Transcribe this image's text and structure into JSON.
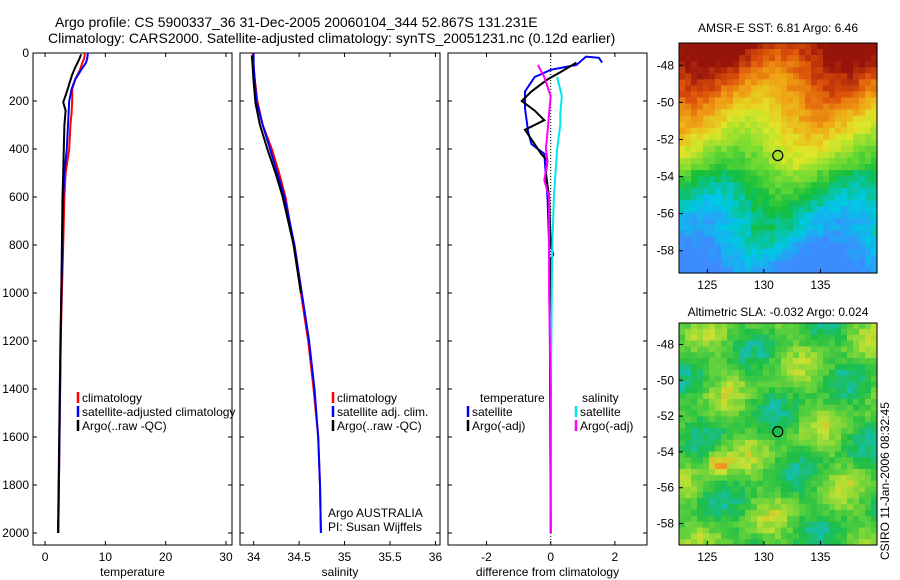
{
  "header": {
    "title_line1": "Argo profile: CS 5900337_36 31-Dec-2005 20060104_344 52.867S 131.231E",
    "title_line2": "Climatology: CARS2000. Satellite-adjusted climatology: synTS_20051231.nc (0.12d earlier)"
  },
  "stamp": "CSIRO 11-Jan-2006 08:32:45",
  "colors": {
    "climatology": "#ff0000",
    "satellite": "#0000ff",
    "argo": "#000000",
    "satellite_sal_diff": "#00e5ee",
    "argo_sal_diff": "#ff00ff"
  },
  "chart_data": [
    {
      "type": "line",
      "panel": "temperature",
      "xlabel": "temperature",
      "xlim": [
        -2,
        31
      ],
      "ylim": [
        2050,
        0
      ],
      "x_ticks": [
        0,
        10,
        20,
        30
      ],
      "y_ticks": [
        0,
        200,
        400,
        600,
        800,
        1000,
        1200,
        1400,
        1600,
        1800,
        2000
      ],
      "legend": [
        "climatology",
        "satellite-adjusted climatology",
        "Argo(..raw -QC)"
      ],
      "series": [
        {
          "name": "climatology",
          "color": "#ff0000",
          "points": [
            [
              6.6,
              0
            ],
            [
              6.5,
              20
            ],
            [
              6.2,
              40
            ],
            [
              5.8,
              70
            ],
            [
              5.0,
              110
            ],
            [
              4.5,
              150
            ],
            [
              4.5,
              200
            ],
            [
              4.4,
              250
            ],
            [
              4.2,
              300
            ],
            [
              4.0,
              400
            ],
            [
              3.4,
              500
            ],
            [
              3.2,
              600
            ],
            [
              3.0,
              800
            ],
            [
              2.8,
              1000
            ],
            [
              2.6,
              1200
            ],
            [
              2.5,
              1400
            ],
            [
              2.4,
              1600
            ],
            [
              2.3,
              1800
            ],
            [
              2.2,
              2000
            ]
          ]
        },
        {
          "name": "satellite-adjusted climatology",
          "color": "#0000ff",
          "points": [
            [
              7.1,
              0
            ],
            [
              7.0,
              20
            ],
            [
              6.8,
              40
            ],
            [
              6.0,
              70
            ],
            [
              5.0,
              110
            ],
            [
              4.4,
              150
            ],
            [
              4.0,
              200
            ],
            [
              3.8,
              300
            ],
            [
              3.6,
              400
            ],
            [
              3.2,
              500
            ],
            [
              3.0,
              600
            ],
            [
              2.9,
              800
            ],
            [
              2.7,
              1000
            ],
            [
              2.6,
              1200
            ],
            [
              2.5,
              1400
            ],
            [
              2.4,
              1600
            ],
            [
              2.3,
              1800
            ],
            [
              2.2,
              2000
            ]
          ]
        },
        {
          "name": "Argo(..raw -QC)",
          "color": "#000000",
          "points": [
            [
              6.0,
              5
            ],
            [
              5.6,
              30
            ],
            [
              5.0,
              60
            ],
            [
              4.5,
              90
            ],
            [
              4.0,
              130
            ],
            [
              3.5,
              170
            ],
            [
              3.0,
              205
            ],
            [
              3.4,
              240
            ],
            [
              3.2,
              300
            ],
            [
              3.1,
              400
            ],
            [
              3.0,
              500
            ],
            [
              2.9,
              600
            ],
            [
              2.8,
              800
            ],
            [
              2.7,
              1000
            ],
            [
              2.55,
              1200
            ],
            [
              2.45,
              1400
            ],
            [
              2.35,
              1600
            ],
            [
              2.25,
              1800
            ],
            [
              2.15,
              2000
            ]
          ]
        }
      ]
    },
    {
      "type": "line",
      "panel": "salinity",
      "xlabel": "salinity",
      "xlim": [
        33.85,
        36.05
      ],
      "ylim": [
        2050,
        0
      ],
      "x_ticks": [
        34,
        34.5,
        35,
        35.5,
        36
      ],
      "legend": [
        "climatology",
        "satellite adj. clim.",
        "Argo(..raw -QC)"
      ],
      "annotation": [
        "Argo AUSTRALIA",
        "PI: Susan Wijffels"
      ],
      "series": [
        {
          "name": "climatology",
          "color": "#ff0000",
          "points": [
            [
              33.99,
              0
            ],
            [
              34.0,
              50
            ],
            [
              34.01,
              100
            ],
            [
              34.04,
              200
            ],
            [
              34.1,
              300
            ],
            [
              34.2,
              400
            ],
            [
              34.28,
              500
            ],
            [
              34.35,
              600
            ],
            [
              34.44,
              800
            ],
            [
              34.52,
              1000
            ],
            [
              34.6,
              1200
            ],
            [
              34.66,
              1400
            ],
            [
              34.71,
              1600
            ],
            [
              34.73,
              1800
            ],
            [
              34.74,
              2000
            ]
          ]
        },
        {
          "name": "satellite adj. clim.",
          "color": "#0000ff",
          "points": [
            [
              34.0,
              0
            ],
            [
              34.0,
              50
            ],
            [
              34.01,
              100
            ],
            [
              34.03,
              200
            ],
            [
              34.1,
              300
            ],
            [
              34.18,
              400
            ],
            [
              34.26,
              500
            ],
            [
              34.34,
              600
            ],
            [
              34.45,
              800
            ],
            [
              34.53,
              1000
            ],
            [
              34.61,
              1200
            ],
            [
              34.67,
              1400
            ],
            [
              34.71,
              1600
            ],
            [
              34.73,
              1800
            ],
            [
              34.74,
              2000
            ]
          ]
        },
        {
          "name": "Argo(..raw -QC)",
          "color": "#000000",
          "points": [
            [
              33.98,
              10
            ],
            [
              33.99,
              60
            ],
            [
              34.0,
              120
            ],
            [
              34.02,
              210
            ],
            [
              34.07,
              300
            ],
            [
              34.15,
              400
            ],
            [
              34.24,
              500
            ],
            [
              34.32,
              600
            ],
            [
              34.44,
              800
            ],
            [
              34.52,
              1000
            ]
          ]
        }
      ]
    },
    {
      "type": "line",
      "panel": "difference",
      "xlabel": "difference from climatology",
      "xlim": [
        -3.2,
        3.0
      ],
      "ylim": [
        2050,
        0
      ],
      "x_ticks": [
        -2,
        0,
        2
      ],
      "legend_left": [
        "temperature",
        "satellite",
        "Argo(-adj)"
      ],
      "legend_right": [
        "salinity",
        "satellite",
        "Argo(-adj)"
      ],
      "series": [
        {
          "name": "temperature satellite",
          "color": "#0000ff",
          "points": [
            [
              1.6,
              40
            ],
            [
              1.5,
              20
            ],
            [
              1.1,
              15
            ],
            [
              0.8,
              50
            ],
            [
              0.4,
              60
            ],
            [
              0.0,
              70
            ],
            [
              -0.5,
              100
            ],
            [
              -0.8,
              160
            ],
            [
              -0.8,
              230
            ],
            [
              -0.7,
              330
            ],
            [
              -0.6,
              380
            ],
            [
              -0.2,
              420
            ],
            [
              -0.1,
              600
            ],
            [
              -0.05,
              800
            ],
            [
              -0.03,
              1000
            ],
            [
              -0.02,
              1400
            ],
            [
              -0.01,
              1700
            ],
            [
              0.0,
              2000
            ]
          ]
        },
        {
          "name": "temperature Argo(-adj)",
          "color": "#000000",
          "points": [
            [
              0.8,
              40
            ],
            [
              0.3,
              80
            ],
            [
              -0.1,
              110
            ],
            [
              -0.6,
              160
            ],
            [
              -0.9,
              200
            ],
            [
              -0.5,
              240
            ],
            [
              -0.2,
              280
            ],
            [
              -0.8,
              320
            ],
            [
              -0.5,
              380
            ],
            [
              -0.3,
              420
            ],
            [
              -0.1,
              450
            ],
            [
              -0.15,
              500
            ],
            [
              -0.05,
              600
            ],
            [
              0.0,
              800
            ],
            [
              0.08,
              840
            ],
            [
              0.0,
              860
            ],
            [
              -0.02,
              1000
            ],
            [
              0.0,
              1200
            ],
            [
              -0.01,
              1600
            ],
            [
              0.0,
              2000
            ]
          ]
        },
        {
          "name": "salinity satellite",
          "color": "#00e5ee",
          "points": [
            [
              0.2,
              100
            ],
            [
              0.35,
              180
            ],
            [
              0.3,
              250
            ],
            [
              0.3,
              300
            ],
            [
              0.2,
              400
            ],
            [
              0.15,
              500
            ],
            [
              0.1,
              600
            ],
            [
              0.05,
              800
            ],
            [
              0.03,
              1000
            ],
            [
              0.01,
              1400
            ],
            [
              0.0,
              2000
            ]
          ]
        },
        {
          "name": "salinity Argo(-adj)",
          "color": "#ff00ff",
          "points": [
            [
              -0.4,
              50
            ],
            [
              -0.2,
              100
            ],
            [
              0.0,
              180
            ],
            [
              -0.05,
              250
            ],
            [
              -0.1,
              330
            ],
            [
              -0.15,
              400
            ],
            [
              -0.1,
              450
            ],
            [
              -0.2,
              530
            ],
            [
              -0.05,
              600
            ],
            [
              -0.05,
              800
            ],
            [
              -0.05,
              1000
            ],
            [
              0.0,
              1400
            ],
            [
              0.0,
              2000
            ]
          ]
        }
      ]
    },
    {
      "type": "heatmap",
      "panel": "sst_map",
      "title": "AMSR-E SST: 6.81 Argo: 6.46",
      "xlim": [
        122.5,
        140
      ],
      "ylim": [
        -59.2,
        -46.8
      ],
      "x_ticks": [
        125,
        130,
        135
      ],
      "y_ticks": [
        -48,
        -50,
        -52,
        -54,
        -56,
        -58
      ],
      "marker": {
        "lon": 131.231,
        "lat": -52.867
      }
    },
    {
      "type": "heatmap",
      "panel": "sla_map",
      "title": "Altimetric SLA: -0.032 Argo: 0.024",
      "xlim": [
        122.5,
        140
      ],
      "ylim": [
        -59.2,
        -46.8
      ],
      "x_ticks": [
        125,
        130,
        135
      ],
      "y_ticks": [
        -48,
        -50,
        -52,
        -54,
        -56,
        -58
      ],
      "marker": {
        "lon": 131.231,
        "lat": -52.867
      }
    }
  ]
}
